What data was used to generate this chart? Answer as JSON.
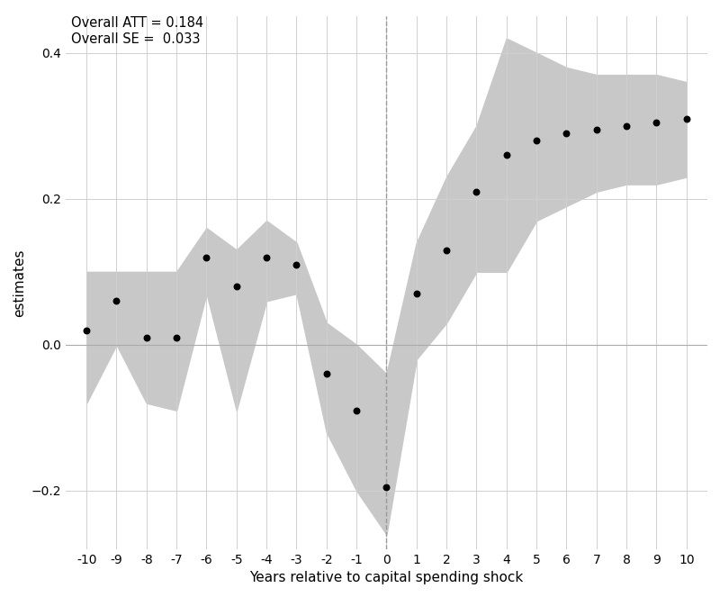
{
  "years": [
    -10,
    -9,
    -8,
    -7,
    -6,
    -5,
    -4,
    -3,
    -2,
    -1,
    0,
    1,
    2,
    3,
    4,
    5,
    6,
    7,
    8,
    9,
    10
  ],
  "estimates": [
    0.02,
    0.06,
    0.01,
    0.01,
    0.12,
    0.08,
    0.12,
    0.11,
    -0.04,
    -0.09,
    -0.195,
    0.07,
    0.13,
    0.21,
    0.26,
    0.28,
    0.29,
    0.295,
    0.3,
    0.305,
    0.31
  ],
  "ci_upper": [
    0.1,
    0.1,
    0.1,
    0.1,
    0.16,
    0.13,
    0.17,
    0.14,
    0.03,
    0.0,
    -0.04,
    0.14,
    0.23,
    0.3,
    0.42,
    0.4,
    0.38,
    0.37,
    0.37,
    0.37,
    0.36
  ],
  "ci_lower": [
    -0.08,
    0.0,
    -0.08,
    -0.09,
    0.07,
    -0.09,
    0.06,
    0.07,
    -0.12,
    -0.2,
    -0.26,
    -0.02,
    0.03,
    0.1,
    0.1,
    0.17,
    0.19,
    0.21,
    0.22,
    0.22,
    0.23
  ],
  "xlabel": "Years relative to capital spending shock",
  "ylabel": "estimates",
  "annotation_line1": "Overall ATT = 0.184",
  "annotation_line2": "Overall SE =  0.033",
  "ylim": [
    -0.28,
    0.45
  ],
  "yticks": [
    -0.2,
    0.0,
    0.2,
    0.4
  ],
  "xlim": [
    -10.7,
    10.7
  ],
  "background_color": "#ffffff",
  "grid_color": "#d0d0d0",
  "ci_fill_color": "#c8c8c8",
  "point_color": "#000000",
  "dashed_line_color": "#999999",
  "zero_line_color": "#aaaaaa"
}
